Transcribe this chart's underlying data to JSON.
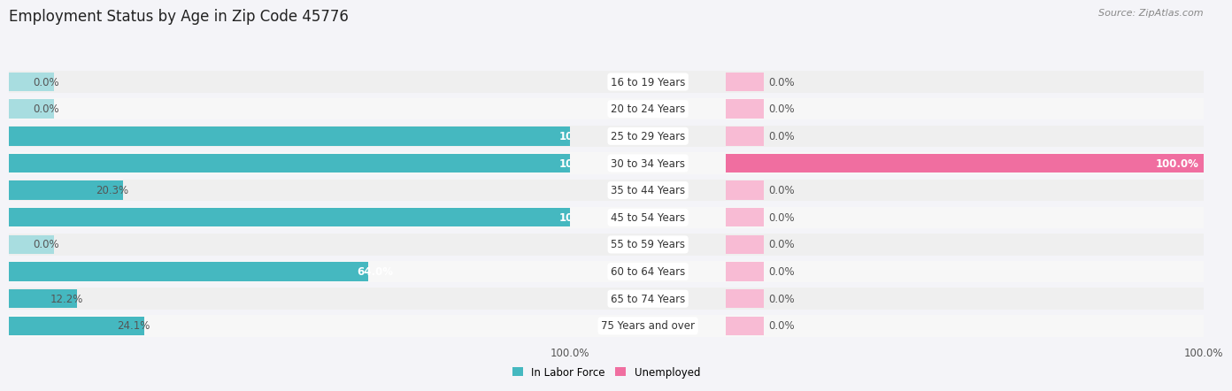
{
  "title": "Employment Status by Age in Zip Code 45776",
  "source": "Source: ZipAtlas.com",
  "age_groups": [
    "16 to 19 Years",
    "20 to 24 Years",
    "25 to 29 Years",
    "30 to 34 Years",
    "35 to 44 Years",
    "45 to 54 Years",
    "55 to 59 Years",
    "60 to 64 Years",
    "65 to 74 Years",
    "75 Years and over"
  ],
  "in_labor_force": [
    0.0,
    0.0,
    100.0,
    100.0,
    20.3,
    100.0,
    0.0,
    64.0,
    12.2,
    24.1
  ],
  "unemployed": [
    0.0,
    0.0,
    0.0,
    100.0,
    0.0,
    0.0,
    0.0,
    0.0,
    0.0,
    0.0
  ],
  "labor_color": "#45B8C0",
  "labor_color_light": "#A8DDE0",
  "unemployed_color": "#F06EA0",
  "unemployed_color_light": "#F8BBD4",
  "row_bg_even": "#EFEFEF",
  "row_bg_odd": "#F7F7F7",
  "background_color": "#F4F4F8",
  "label_bg_color": "#FFFFFF",
  "title_fontsize": 12,
  "label_fontsize": 8.5,
  "tick_fontsize": 8.5,
  "stub_value": 8,
  "xlim": 100,
  "legend_labor": "In Labor Force",
  "legend_unemployed": "Unemployed"
}
